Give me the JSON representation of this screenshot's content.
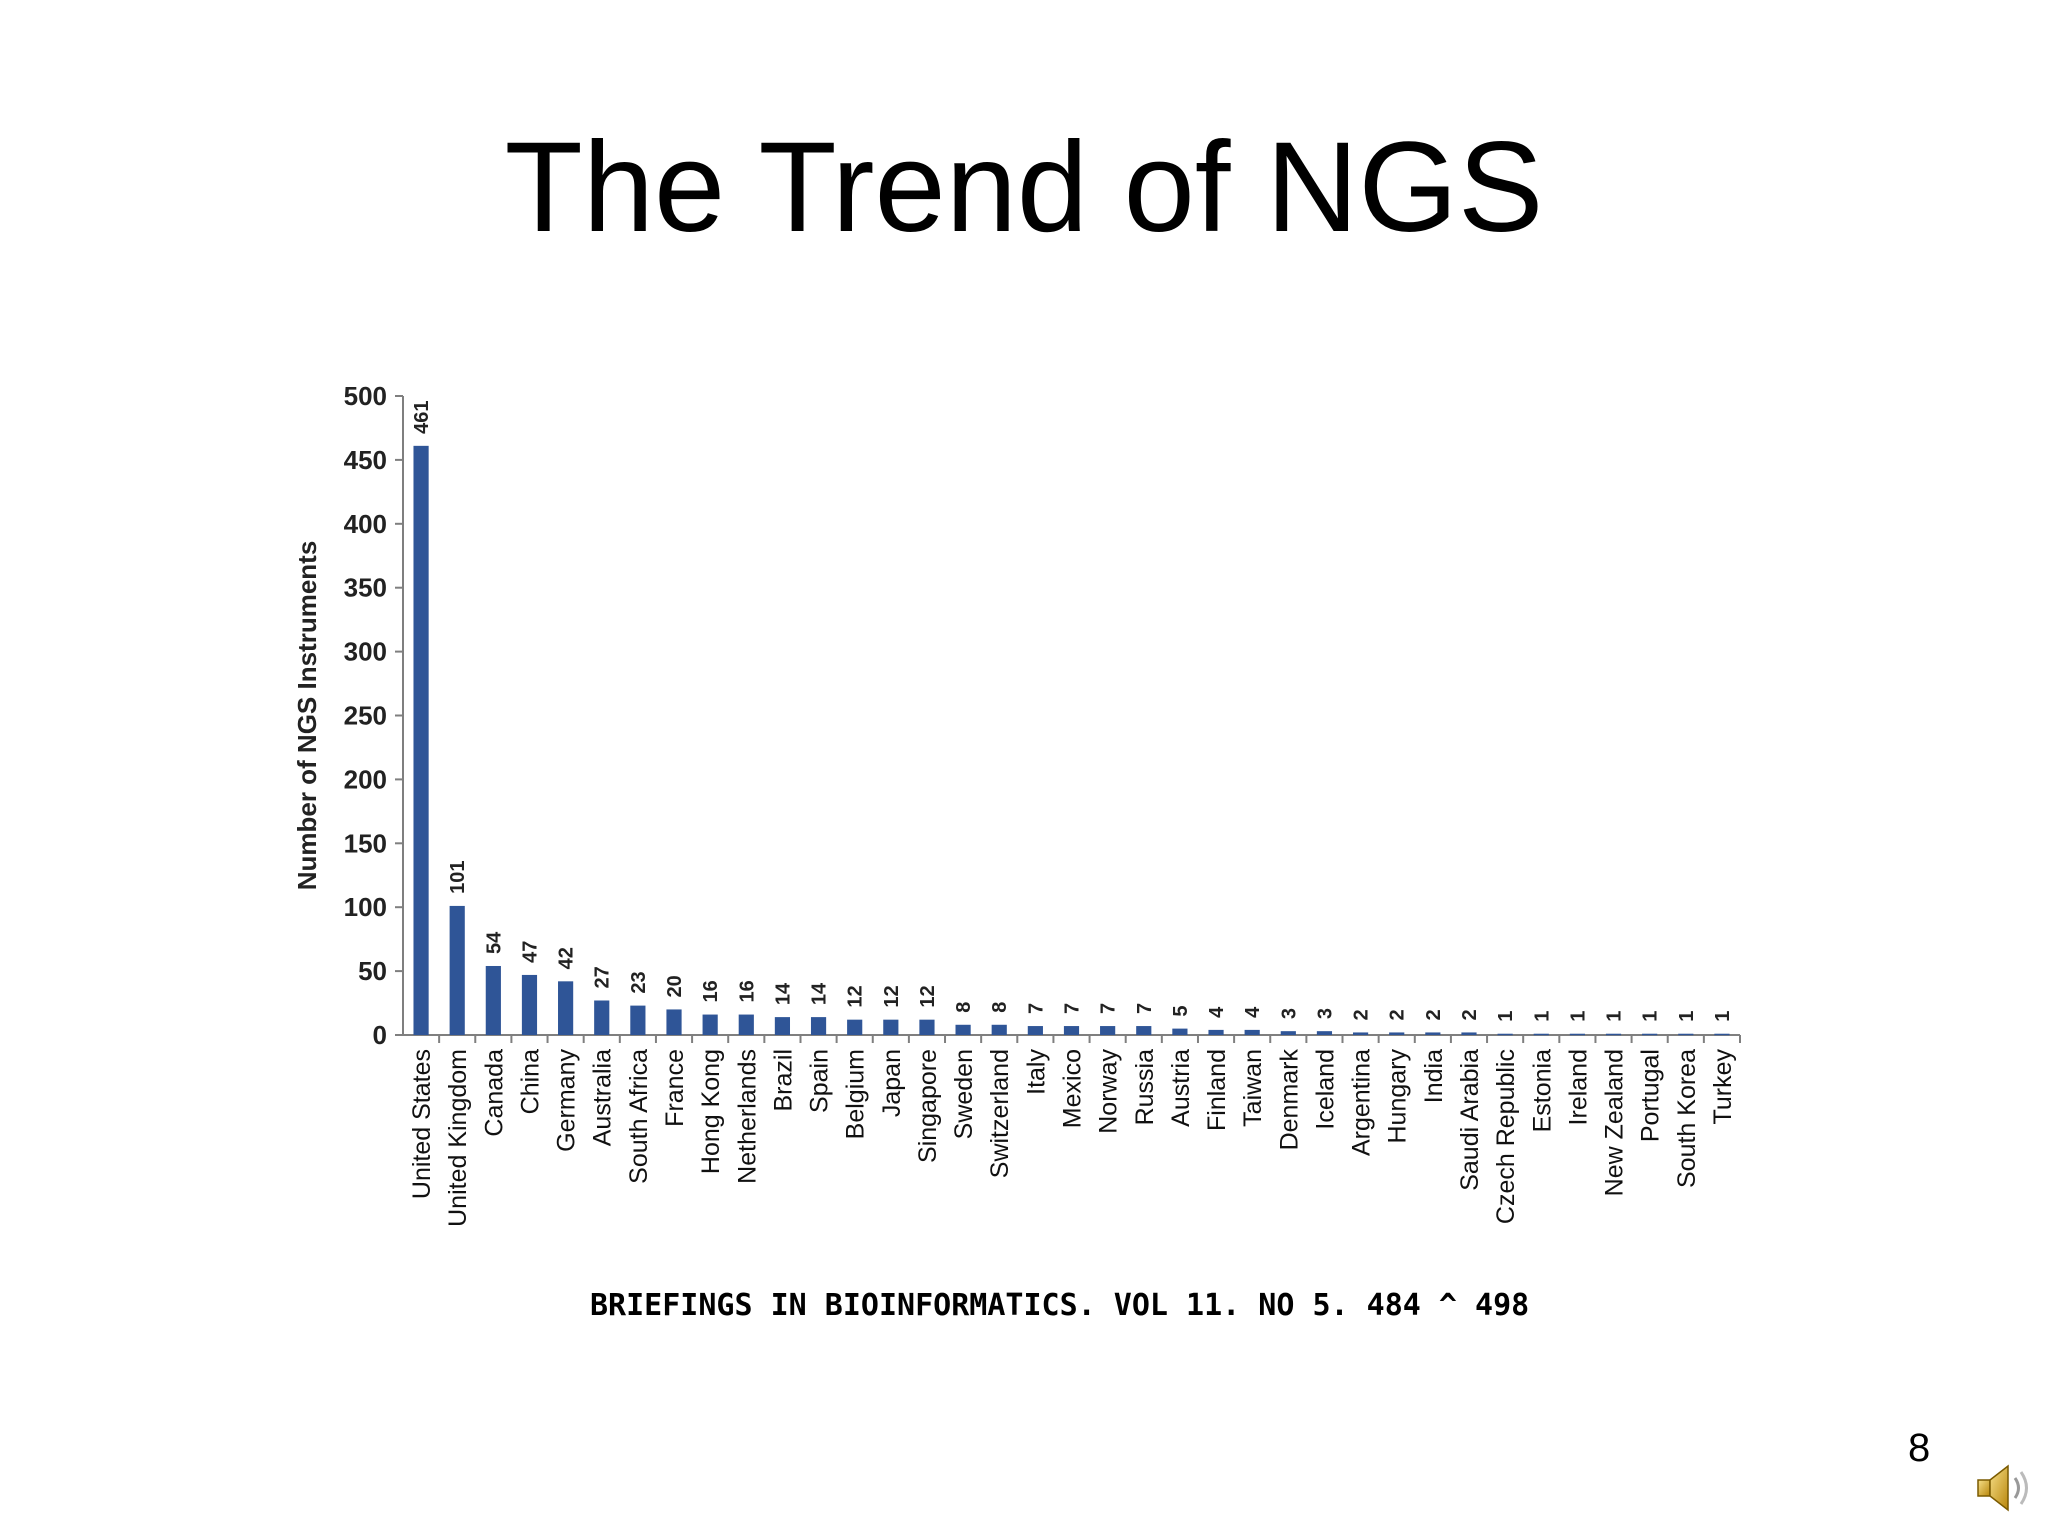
{
  "slide": {
    "title": "The Trend of NGS",
    "citation": "BRIEFINGS IN BIOINFORMATICS. VOL 11. NO 5. 484 ^ 498",
    "page_number": "8",
    "audio_icon": "speaker-icon"
  },
  "colors": {
    "bar": "#2f5597",
    "axis": "#7f7f7f",
    "text": "#000000"
  },
  "chart_data": {
    "type": "bar",
    "title": "",
    "xlabel": "",
    "ylabel": "Number of NGS Instruments",
    "ylim": [
      0,
      500
    ],
    "yticks": [
      0,
      50,
      100,
      150,
      200,
      250,
      300,
      350,
      400,
      450,
      500
    ],
    "grid": false,
    "categories": [
      "United States",
      "United Kingdom",
      "Canada",
      "China",
      "Germany",
      "Australia",
      "South Africa",
      "France",
      "Hong Kong",
      "Netherlands",
      "Brazil",
      "Spain",
      "Belgium",
      "Japan",
      "Singapore",
      "Sweden",
      "Switzerland",
      "Italy",
      "Mexico",
      "Norway",
      "Russia",
      "Austria",
      "Finland",
      "Taiwan",
      "Denmark",
      "Iceland",
      "Argentina",
      "Hungary",
      "India",
      "Saudi Arabia",
      "Czech Republic",
      "Estonia",
      "Ireland",
      "New Zealand",
      "Portugal",
      "South Korea",
      "Turkey"
    ],
    "values": [
      461,
      101,
      54,
      47,
      42,
      27,
      23,
      20,
      16,
      16,
      14,
      14,
      12,
      12,
      12,
      8,
      8,
      7,
      7,
      7,
      7,
      5,
      4,
      4,
      3,
      3,
      2,
      2,
      2,
      2,
      1,
      1,
      1,
      1,
      1,
      1,
      1
    ],
    "data_labels": [
      "461",
      "101",
      "54",
      "47",
      "42",
      "27",
      "23",
      "20",
      "16",
      "16",
      "14",
      "14",
      "12",
      "12",
      "12",
      "8",
      "8",
      "7",
      "7",
      "7",
      "7",
      "5",
      "4",
      "4",
      "3",
      "3",
      "2",
      "2",
      "2",
      "2",
      "1",
      "1",
      "1",
      "1",
      "1",
      "1",
      "1"
    ]
  }
}
